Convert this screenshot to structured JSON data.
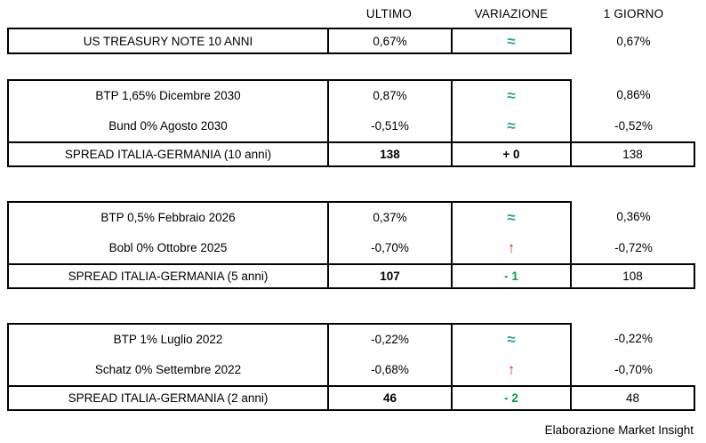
{
  "chart_data": {
    "type": "table",
    "columns": [
      "ULTIMO",
      "VARIAZIONE",
      "1 GIORNO"
    ],
    "groups": [
      {
        "rows": [
          {
            "label": "US TREASURY NOTE 10 ANNI",
            "ultimo": "0,67%",
            "variazione": "≈",
            "giorno": "0,67%",
            "trend": "flat"
          }
        ]
      },
      {
        "rows": [
          {
            "label": "BTP 1,65% Dicembre 2030",
            "ultimo": "0,87%",
            "variazione": "≈",
            "giorno": "0,86%",
            "trend": "flat"
          },
          {
            "label": "Bund 0% Agosto 2030",
            "ultimo": "-0,51%",
            "variazione": "≈",
            "giorno": "-0,52%",
            "trend": "flat"
          },
          {
            "label": "SPREAD ITALIA-GERMANIA (10 anni)",
            "ultimo": "138",
            "variazione": "+ 0",
            "giorno": "138",
            "trend": "neutral"
          }
        ]
      },
      {
        "rows": [
          {
            "label": "BTP 0,5% Febbraio 2026",
            "ultimo": "0,37%",
            "variazione": "≈",
            "giorno": "0,36%",
            "trend": "flat"
          },
          {
            "label": "Bobl 0% Ottobre 2025",
            "ultimo": "↑",
            "variazione": "↑",
            "giorno": "-0,72%",
            "trend": "up",
            "ultimo_value": "-0,70%"
          },
          {
            "label": "SPREAD ITALIA-GERMANIA (5 anni)",
            "ultimo": "107",
            "variazione": "- 1",
            "giorno": "108",
            "trend": "down"
          }
        ]
      },
      {
        "rows": [
          {
            "label": "BTP 1% Luglio 2022",
            "ultimo": "-0,22%",
            "variazione": "≈",
            "giorno": "-0,22%",
            "trend": "flat"
          },
          {
            "label": "Schatz 0% Settembre 2022",
            "ultimo": "-0,68%",
            "variazione": "↑",
            "giorno": "-0,70%",
            "trend": "up"
          },
          {
            "label": "SPREAD ITALIA-GERMANIA (2 anni)",
            "ultimo": "46",
            "variazione": "- 2",
            "giorno": "48",
            "trend": "down"
          }
        ]
      }
    ]
  },
  "colors": {
    "flat": "#2AA198",
    "up": "#D93025",
    "down": "#00A14B",
    "neutral": "#000000"
  },
  "footer": {
    "credit": "Elaborazione Market Insight"
  }
}
